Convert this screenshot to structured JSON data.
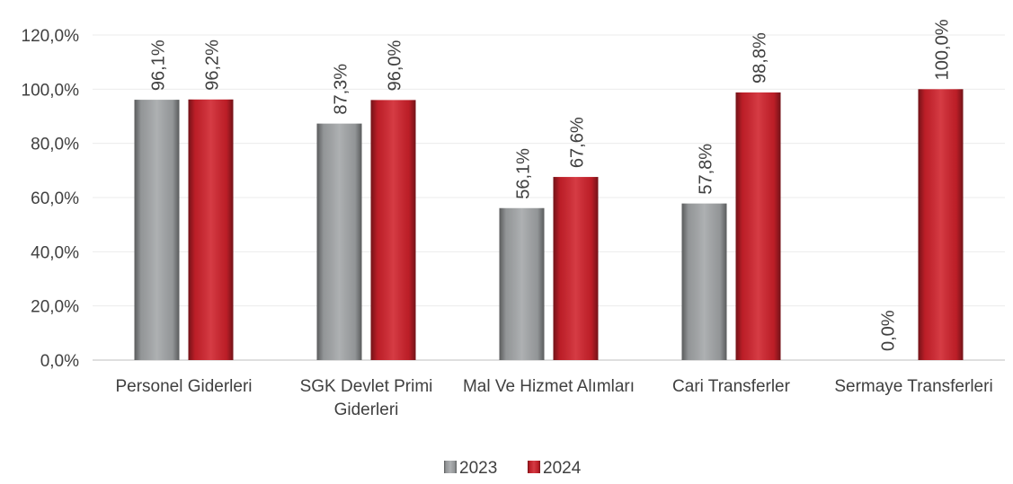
{
  "chart_data": {
    "type": "bar",
    "categories": [
      "Personel Giderleri",
      "SGK Devlet Primi Giderleri",
      "Mal Ve Hizmet Alımları",
      "Cari Transferler",
      "Sermaye Transferleri"
    ],
    "series": [
      {
        "name": "2023",
        "color": "#a3a6a8",
        "values": [
          96.1,
          87.3,
          56.1,
          57.8,
          0
        ],
        "value_labels": [
          "96,1%",
          "87,3%",
          "56,1%",
          "57,8%",
          "0,0%"
        ]
      },
      {
        "name": "2024",
        "color": "#d0212b",
        "values": [
          96.2,
          96.0,
          67.6,
          98.8,
          100.0
        ],
        "value_labels": [
          "96,2%",
          "96,0%",
          "67,6%",
          "98,8%",
          "100,0%"
        ]
      }
    ],
    "ylim": [
      0,
      120
    ],
    "yticks": [
      {
        "value": 0,
        "label": "0,0%"
      },
      {
        "value": 20,
        "label": "20,0%"
      },
      {
        "value": 40,
        "label": "40,0%"
      },
      {
        "value": 60,
        "label": "60,0%"
      },
      {
        "value": 80,
        "label": "80,0%"
      },
      {
        "value": 100,
        "label": "100,0%"
      },
      {
        "value": 120,
        "label": "120,0%"
      }
    ],
    "grid": true,
    "legend": "bottom"
  }
}
